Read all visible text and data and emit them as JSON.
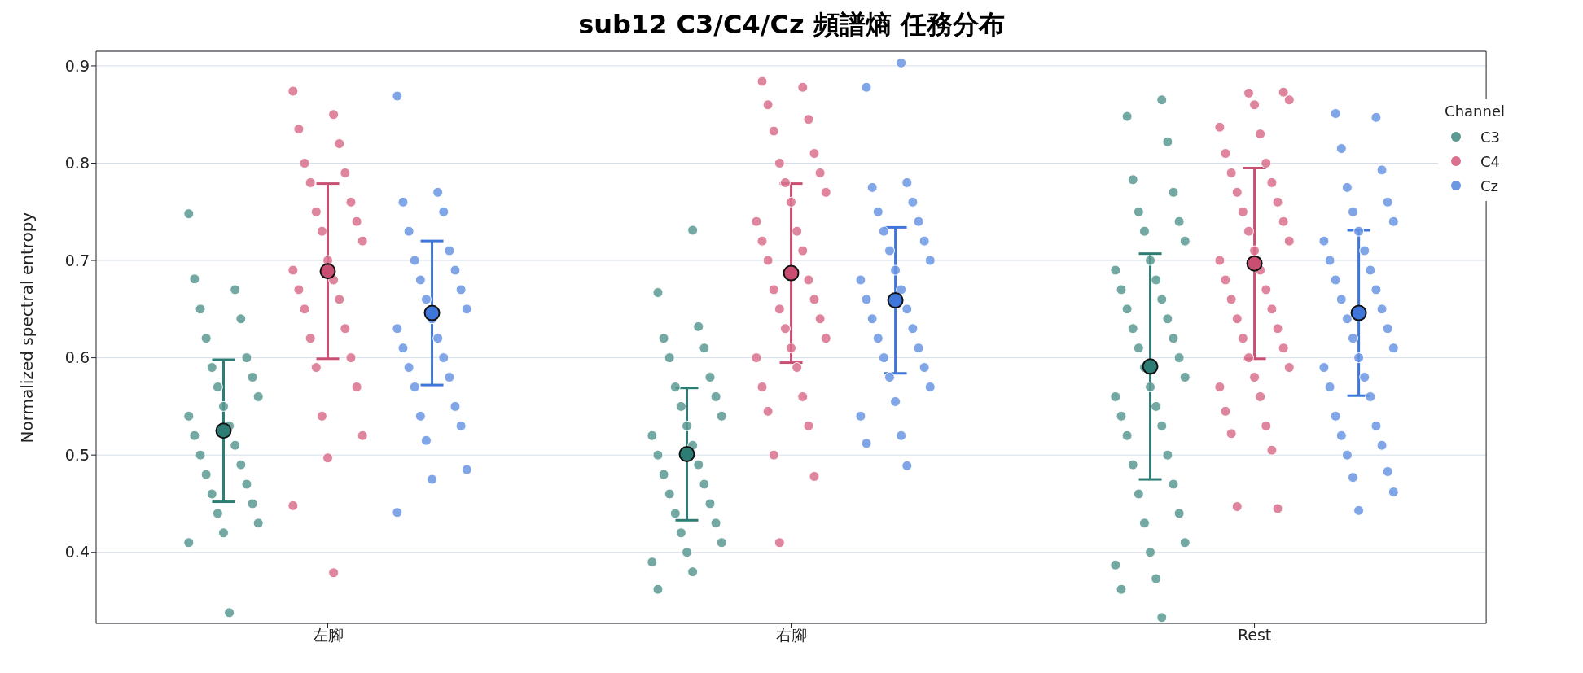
{
  "chart_data": {
    "type": "scatter",
    "title": "sub12 C3/C4/Cz 頻譜熵 任務分布",
    "ylabel": "Normalized spectral entropy",
    "legend_title": "Channel",
    "legend": "top right",
    "grid": "y",
    "marker": "circle",
    "categories": [
      "左腳",
      "右腳",
      "Rest"
    ],
    "ylim": [
      0.327,
      0.915
    ],
    "yticks": [
      0.4,
      0.5,
      0.6,
      0.7,
      0.8,
      0.9
    ],
    "series": [
      {
        "name": "C3",
        "color": "#5a9a92",
        "x": [
          "左腳",
          "左腳",
          "左腳",
          "左腳",
          "左腳",
          "左腳",
          "左腳",
          "左腳",
          "左腳",
          "左腳",
          "左腳",
          "左腳",
          "左腳",
          "左腳",
          "左腳",
          "左腳",
          "左腳",
          "左腳",
          "左腳",
          "左腳",
          "左腳",
          "左腳",
          "左腳",
          "左腳",
          "左腳",
          "左腳",
          "左腳",
          "右腳",
          "右腳",
          "右腳",
          "右腳",
          "右腳",
          "右腳",
          "右腳",
          "右腳",
          "右腳",
          "右腳",
          "右腳",
          "右腳",
          "右腳",
          "右腳",
          "右腳",
          "右腳",
          "右腳",
          "右腳",
          "右腳",
          "右腳",
          "右腳",
          "右腳",
          "右腳",
          "右腳",
          "右腳",
          "右腳",
          "右腳",
          "右腳",
          "Rest",
          "Rest",
          "Rest",
          "Rest",
          "Rest",
          "Rest",
          "Rest",
          "Rest",
          "Rest",
          "Rest",
          "Rest",
          "Rest",
          "Rest",
          "Rest",
          "Rest",
          "Rest",
          "Rest",
          "Rest",
          "Rest",
          "Rest",
          "Rest",
          "Rest",
          "Rest",
          "Rest",
          "Rest",
          "Rest",
          "Rest",
          "Rest",
          "Rest",
          "Rest",
          "Rest",
          "Rest",
          "Rest",
          "Rest",
          "Rest",
          "Rest",
          "Rest",
          "Rest",
          "Rest",
          "Rest"
        ],
        "values": [
          0.748,
          0.338,
          0.681,
          0.67,
          0.65,
          0.64,
          0.62,
          0.6,
          0.59,
          0.58,
          0.57,
          0.56,
          0.55,
          0.54,
          0.53,
          0.52,
          0.51,
          0.5,
          0.49,
          0.48,
          0.47,
          0.46,
          0.45,
          0.44,
          0.43,
          0.42,
          0.41,
          0.731,
          0.667,
          0.632,
          0.62,
          0.61,
          0.6,
          0.58,
          0.57,
          0.56,
          0.55,
          0.54,
          0.53,
          0.52,
          0.51,
          0.5,
          0.49,
          0.48,
          0.47,
          0.46,
          0.45,
          0.44,
          0.43,
          0.42,
          0.41,
          0.4,
          0.39,
          0.38,
          0.362,
          0.865,
          0.848,
          0.822,
          0.783,
          0.77,
          0.75,
          0.74,
          0.73,
          0.72,
          0.7,
          0.69,
          0.68,
          0.67,
          0.66,
          0.65,
          0.64,
          0.63,
          0.62,
          0.61,
          0.6,
          0.59,
          0.58,
          0.57,
          0.56,
          0.55,
          0.54,
          0.53,
          0.52,
          0.5,
          0.49,
          0.47,
          0.46,
          0.44,
          0.43,
          0.41,
          0.4,
          0.387,
          0.373,
          0.362,
          0.333
        ]
      },
      {
        "name": "C4",
        "color": "#d9708d",
        "x": [
          "左腳",
          "左腳",
          "左腳",
          "左腳",
          "左腳",
          "左腳",
          "左腳",
          "左腳",
          "左腳",
          "左腳",
          "左腳",
          "左腳",
          "左腳",
          "左腳",
          "左腳",
          "左腳",
          "左腳",
          "左腳",
          "左腳",
          "左腳",
          "左腳",
          "左腳",
          "左腳",
          "左腳",
          "左腳",
          "左腳",
          "左腳",
          "左腳",
          "右腳",
          "右腳",
          "右腳",
          "右腳",
          "右腳",
          "右腳",
          "右腳",
          "右腳",
          "右腳",
          "右腳",
          "右腳",
          "右腳",
          "右腳",
          "右腳",
          "右腳",
          "右腳",
          "右腳",
          "右腳",
          "右腳",
          "右腳",
          "右腳",
          "右腳",
          "右腳",
          "右腳",
          "右腳",
          "右腳",
          "右腳",
          "右腳",
          "右腳",
          "右腳",
          "右腳",
          "右腳",
          "右腳",
          "Rest",
          "Rest",
          "Rest",
          "Rest",
          "Rest",
          "Rest",
          "Rest",
          "Rest",
          "Rest",
          "Rest",
          "Rest",
          "Rest",
          "Rest",
          "Rest",
          "Rest",
          "Rest",
          "Rest",
          "Rest",
          "Rest",
          "Rest",
          "Rest",
          "Rest",
          "Rest",
          "Rest",
          "Rest",
          "Rest",
          "Rest",
          "Rest",
          "Rest",
          "Rest",
          "Rest",
          "Rest",
          "Rest",
          "Rest",
          "Rest",
          "Rest",
          "Rest",
          "Rest"
        ],
        "values": [
          0.874,
          0.85,
          0.835,
          0.82,
          0.8,
          0.79,
          0.78,
          0.76,
          0.75,
          0.74,
          0.73,
          0.72,
          0.7,
          0.69,
          0.68,
          0.67,
          0.66,
          0.65,
          0.63,
          0.62,
          0.6,
          0.59,
          0.57,
          0.54,
          0.52,
          0.497,
          0.448,
          0.379,
          0.884,
          0.878,
          0.86,
          0.845,
          0.833,
          0.81,
          0.8,
          0.79,
          0.78,
          0.77,
          0.76,
          0.74,
          0.73,
          0.72,
          0.71,
          0.7,
          0.68,
          0.67,
          0.66,
          0.65,
          0.64,
          0.63,
          0.62,
          0.61,
          0.6,
          0.59,
          0.57,
          0.56,
          0.545,
          0.53,
          0.5,
          0.478,
          0.41,
          0.873,
          0.872,
          0.865,
          0.86,
          0.837,
          0.83,
          0.81,
          0.8,
          0.79,
          0.78,
          0.77,
          0.76,
          0.75,
          0.74,
          0.73,
          0.72,
          0.71,
          0.7,
          0.69,
          0.68,
          0.67,
          0.66,
          0.65,
          0.64,
          0.63,
          0.62,
          0.61,
          0.6,
          0.59,
          0.58,
          0.57,
          0.56,
          0.545,
          0.53,
          0.522,
          0.505,
          0.447,
          0.445
        ]
      },
      {
        "name": "Cz",
        "color": "#6b97e3",
        "x": [
          "左腳",
          "左腳",
          "左腳",
          "左腳",
          "左腳",
          "左腳",
          "左腳",
          "左腳",
          "左腳",
          "左腳",
          "左腳",
          "左腳",
          "左腳",
          "左腳",
          "左腳",
          "左腳",
          "左腳",
          "左腳",
          "左腳",
          "左腳",
          "左腳",
          "左腳",
          "左腳",
          "左腳",
          "左腳",
          "左腳",
          "左腳",
          "右腳",
          "右腳",
          "右腳",
          "右腳",
          "右腳",
          "右腳",
          "右腳",
          "右腳",
          "右腳",
          "右腳",
          "右腳",
          "右腳",
          "右腳",
          "右腳",
          "右腳",
          "右腳",
          "右腳",
          "右腳",
          "右腳",
          "右腳",
          "右腳",
          "右腳",
          "右腳",
          "右腳",
          "右腳",
          "右腳",
          "右腳",
          "右腳",
          "右腳",
          "Rest",
          "Rest",
          "Rest",
          "Rest",
          "Rest",
          "Rest",
          "Rest",
          "Rest",
          "Rest",
          "Rest",
          "Rest",
          "Rest",
          "Rest",
          "Rest",
          "Rest",
          "Rest",
          "Rest",
          "Rest",
          "Rest",
          "Rest",
          "Rest",
          "Rest",
          "Rest",
          "Rest",
          "Rest",
          "Rest",
          "Rest",
          "Rest",
          "Rest",
          "Rest",
          "Rest",
          "Rest",
          "Rest",
          "Rest",
          "Rest"
        ],
        "values": [
          0.869,
          0.77,
          0.76,
          0.75,
          0.73,
          0.71,
          0.7,
          0.69,
          0.68,
          0.67,
          0.66,
          0.65,
          0.64,
          0.63,
          0.62,
          0.61,
          0.6,
          0.59,
          0.58,
          0.57,
          0.55,
          0.54,
          0.53,
          0.515,
          0.485,
          0.475,
          0.441,
          0.903,
          0.878,
          0.78,
          0.775,
          0.76,
          0.75,
          0.74,
          0.73,
          0.72,
          0.71,
          0.7,
          0.69,
          0.68,
          0.67,
          0.66,
          0.65,
          0.64,
          0.63,
          0.62,
          0.61,
          0.6,
          0.59,
          0.58,
          0.57,
          0.555,
          0.54,
          0.52,
          0.512,
          0.489,
          0.851,
          0.847,
          0.815,
          0.793,
          0.775,
          0.76,
          0.75,
          0.74,
          0.73,
          0.72,
          0.71,
          0.7,
          0.69,
          0.68,
          0.67,
          0.66,
          0.65,
          0.64,
          0.63,
          0.62,
          0.61,
          0.6,
          0.59,
          0.58,
          0.57,
          0.56,
          0.54,
          0.53,
          0.52,
          0.51,
          0.5,
          0.483,
          0.477,
          0.462,
          0.443
        ]
      },
      {
        "color": "#2e7d74",
        "x": [
          "左腳",
          "右腳",
          "Rest"
        ],
        "values": [
          0.525,
          0.501,
          0.591
        ],
        "errors": [
          0.073,
          0.068,
          0.116
        ]
      },
      {
        "color": "#c94f72",
        "x": [
          "左腳",
          "右腳",
          "Rest"
        ],
        "values": [
          0.689,
          0.687,
          0.697
        ],
        "errors": [
          0.09,
          0.092,
          0.098
        ]
      },
      {
        "color": "#3f76d9",
        "x": [
          "左腳",
          "右腳",
          "Rest"
        ],
        "values": [
          0.646,
          0.659,
          0.646
        ],
        "errors": [
          0.074,
          0.075,
          0.085
        ]
      }
    ]
  }
}
